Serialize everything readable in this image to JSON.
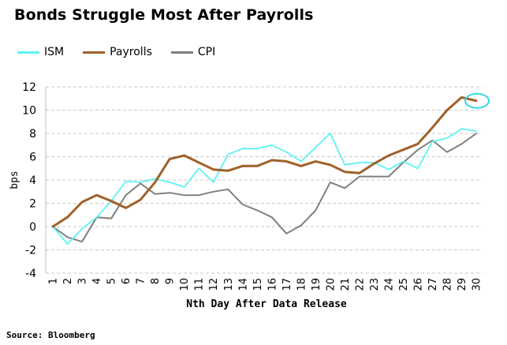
{
  "title": "Bonds Struggle Most After Payrolls",
  "source": "Source: Bloomberg",
  "chart_data": {
    "type": "line",
    "xlabel": "Nth Day After Data Release",
    "ylabel": "bps",
    "ylim": [
      -4,
      12
    ],
    "yticks": [
      -4,
      -2,
      0,
      2,
      4,
      6,
      8,
      10,
      12
    ],
    "grid": "horizontal dashed",
    "legend_placement": "top-left",
    "categories": [
      "1",
      "2",
      "3",
      "4",
      "5",
      "6",
      "7",
      "8",
      "9",
      "10",
      "11",
      "12",
      "13",
      "14",
      "15",
      "16",
      "17",
      "18",
      "19",
      "20",
      "21",
      "22",
      "23",
      "24",
      "25",
      "26",
      "27",
      "28",
      "29",
      "30"
    ],
    "series": [
      {
        "name": "ISM",
        "color": "#5ef2f2",
        "width": 1.8,
        "values": [
          0,
          -1.5,
          -0.2,
          0.8,
          2.2,
          3.9,
          3.8,
          4.1,
          3.8,
          3.4,
          5.0,
          3.8,
          6.2,
          6.7,
          6.7,
          7.0,
          6.4,
          5.6,
          6.8,
          8.0,
          5.3,
          5.5,
          5.5,
          4.9,
          5.6,
          5.0,
          7.3,
          7.6,
          8.4,
          8.2
        ]
      },
      {
        "name": "Payrolls",
        "color": "#a0612a",
        "width": 3,
        "values": [
          0,
          0.8,
          2.1,
          2.7,
          2.2,
          1.6,
          2.3,
          3.8,
          5.8,
          6.1,
          5.5,
          4.9,
          4.8,
          5.2,
          5.2,
          5.7,
          5.6,
          5.2,
          5.6,
          5.3,
          4.7,
          4.6,
          5.4,
          6.1,
          6.6,
          7.1,
          8.5,
          10.0,
          11.1,
          10.8
        ]
      },
      {
        "name": "CPI",
        "color": "#808080",
        "width": 2,
        "values": [
          0,
          -0.9,
          -1.3,
          0.8,
          0.7,
          2.7,
          3.7,
          2.8,
          2.9,
          2.7,
          2.7,
          3.0,
          3.2,
          1.9,
          1.4,
          0.8,
          -0.6,
          0.1,
          1.4,
          3.8,
          3.3,
          4.3,
          4.3,
          4.3,
          5.5,
          6.6,
          7.4,
          6.4,
          7.1,
          8.0
        ]
      }
    ],
    "highlight": {
      "series": "Payrolls",
      "category": "30",
      "color": "#33d6e8"
    }
  }
}
